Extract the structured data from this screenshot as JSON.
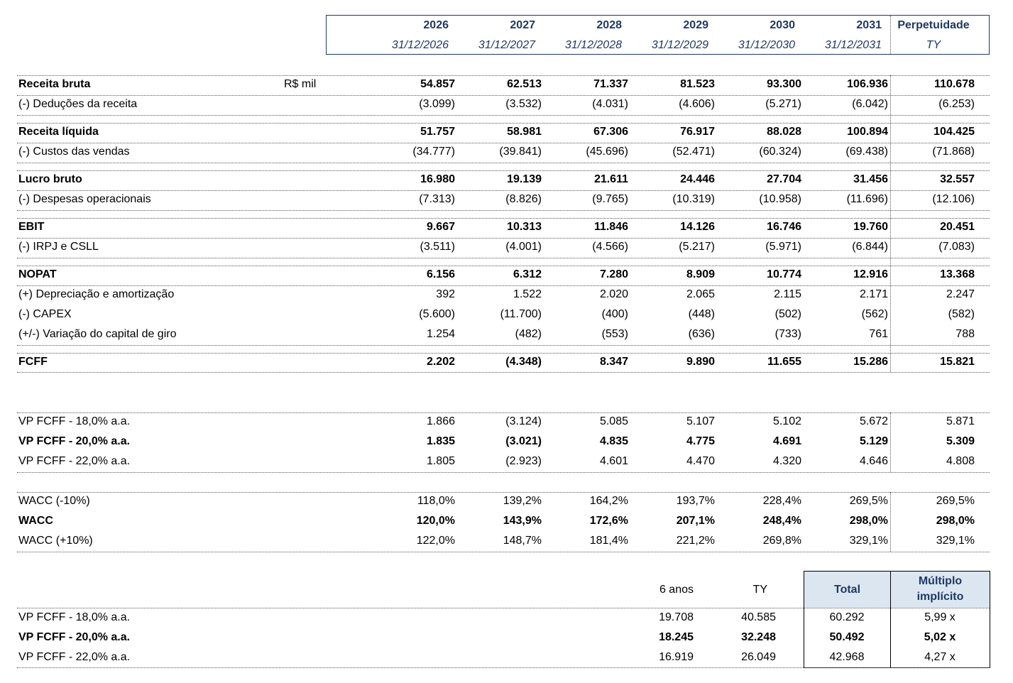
{
  "columns": [
    {
      "year": "2026",
      "date": "31/12/2026"
    },
    {
      "year": "2027",
      "date": "31/12/2027"
    },
    {
      "year": "2028",
      "date": "31/12/2028"
    },
    {
      "year": "2029",
      "date": "31/12/2029"
    },
    {
      "year": "2030",
      "date": "31/12/2030"
    },
    {
      "year": "2031",
      "date": "31/12/2031"
    },
    {
      "year": "Perpetuidade",
      "date": "TY"
    }
  ],
  "unit": "R$ mil",
  "rows": [
    {
      "label": "Receita bruta",
      "values": [
        "54.857",
        "62.513",
        "71.337",
        "81.523",
        "93.300",
        "106.936",
        "110.678"
      ]
    },
    {
      "label": "(-) Deduções da receita",
      "values": [
        "(3.099)",
        "(3.532)",
        "(4.031)",
        "(4.606)",
        "(5.271)",
        "(6.042)",
        "(6.253)"
      ]
    },
    {
      "label": "Receita líquida",
      "values": [
        "51.757",
        "58.981",
        "67.306",
        "76.917",
        "88.028",
        "100.894",
        "104.425"
      ]
    },
    {
      "label": "(-) Custos das vendas",
      "values": [
        "(34.777)",
        "(39.841)",
        "(45.696)",
        "(52.471)",
        "(60.324)",
        "(69.438)",
        "(71.868)"
      ]
    },
    {
      "label": "Lucro bruto",
      "values": [
        "16.980",
        "19.139",
        "21.611",
        "24.446",
        "27.704",
        "31.456",
        "32.557"
      ]
    },
    {
      "label": "(-) Despesas operacionais",
      "values": [
        "(7.313)",
        "(8.826)",
        "(9.765)",
        "(10.319)",
        "(10.958)",
        "(11.696)",
        "(12.106)"
      ]
    },
    {
      "label": "EBIT",
      "values": [
        "9.667",
        "10.313",
        "11.846",
        "14.126",
        "16.746",
        "19.760",
        "20.451"
      ]
    },
    {
      "label": "(-) IRPJ e CSLL",
      "values": [
        "(3.511)",
        "(4.001)",
        "(4.566)",
        "(5.217)",
        "(5.971)",
        "(6.844)",
        "(7.083)"
      ]
    },
    {
      "label": "NOPAT",
      "values": [
        "6.156",
        "6.312",
        "7.280",
        "8.909",
        "10.774",
        "12.916",
        "13.368"
      ]
    },
    {
      "label": "(+) Depreciação e amortização",
      "values": [
        "392",
        "1.522",
        "2.020",
        "2.065",
        "2.115",
        "2.171",
        "2.247"
      ]
    },
    {
      "label": "(-) CAPEX",
      "values": [
        "(5.600)",
        "(11.700)",
        "(400)",
        "(448)",
        "(502)",
        "(562)",
        "(582)"
      ]
    },
    {
      "label": "(+/-) Variação do capital de giro",
      "values": [
        "1.254",
        "(482)",
        "(553)",
        "(636)",
        "(733)",
        "761",
        "788"
      ]
    },
    {
      "label": "FCFF",
      "values": [
        "2.202",
        "(4.348)",
        "8.347",
        "9.890",
        "11.655",
        "15.286",
        "15.821"
      ]
    },
    {
      "label": "VP FCFF - 18,0% a.a.",
      "values": [
        "1.866",
        "(3.124)",
        "5.085",
        "5.107",
        "5.102",
        "5.672",
        "5.871"
      ]
    },
    {
      "label": "VP FCFF - 20,0% a.a.",
      "values": [
        "1.835",
        "(3.021)",
        "4.835",
        "4.775",
        "4.691",
        "5.129",
        "5.309"
      ]
    },
    {
      "label": "VP FCFF - 22,0% a.a.",
      "values": [
        "1.805",
        "(2.923)",
        "4.601",
        "4.470",
        "4.320",
        "4.646",
        "4.808"
      ]
    },
    {
      "label": "WACC (-10%)",
      "values": [
        "118,0%",
        "139,2%",
        "164,2%",
        "193,7%",
        "228,4%",
        "269,5%",
        "269,5%"
      ]
    },
    {
      "label": "WACC",
      "values": [
        "120,0%",
        "143,9%",
        "172,6%",
        "207,1%",
        "248,4%",
        "298,0%",
        "298,0%"
      ]
    },
    {
      "label": "WACC (+10%)",
      "values": [
        "122,0%",
        "148,7%",
        "181,4%",
        "221,2%",
        "269,8%",
        "329,1%",
        "329,1%"
      ]
    }
  ],
  "summary": {
    "headers": {
      "six_years": "6 anos",
      "ty": "TY",
      "total": "Total",
      "multiple_line1": "Múltiplo",
      "multiple_line2": "implícito"
    },
    "rows": [
      {
        "label": "VP FCFF - 18,0% a.a.",
        "six_years": "19.708",
        "ty": "40.585",
        "total": "60.292",
        "multiple": "5,99 x"
      },
      {
        "label": "VP FCFF - 20,0% a.a.",
        "six_years": "18.245",
        "ty": "32.248",
        "total": "50.492",
        "multiple": "5,02 x"
      },
      {
        "label": "VP FCFF - 22,0% a.a.",
        "six_years": "16.919",
        "ty": "26.049",
        "total": "42.968",
        "multiple": "4,27 x"
      }
    ]
  }
}
